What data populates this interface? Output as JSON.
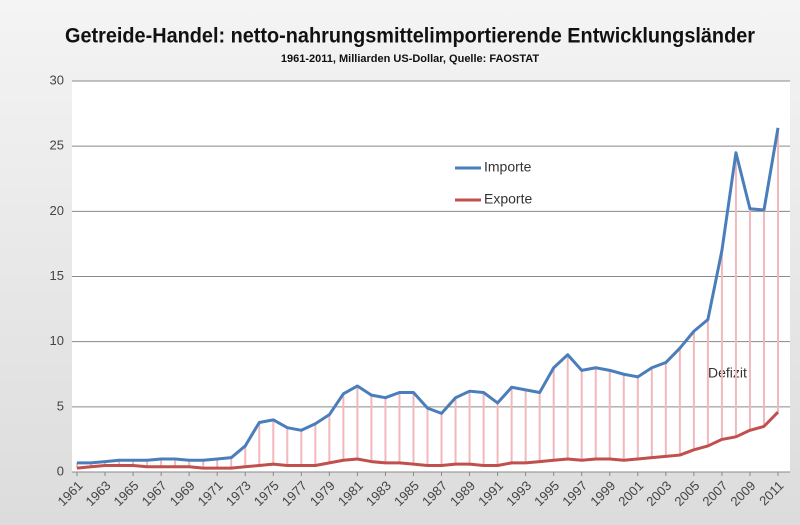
{
  "chart_data": {
    "type": "line",
    "title": "Getreide-Handel: netto-nahrungsmittelimportierende Entwicklungsländer",
    "subtitle": "1961-2011, Milliarden US-Dollar, Quelle: FAOSTAT",
    "annotation": "Defizit",
    "x": [
      1961,
      1962,
      1963,
      1964,
      1965,
      1966,
      1967,
      1968,
      1969,
      1970,
      1971,
      1972,
      1973,
      1974,
      1975,
      1976,
      1977,
      1978,
      1979,
      1980,
      1981,
      1982,
      1983,
      1984,
      1985,
      1986,
      1987,
      1988,
      1989,
      1990,
      1991,
      1992,
      1993,
      1994,
      1995,
      1996,
      1997,
      1998,
      1999,
      2000,
      2001,
      2002,
      2003,
      2004,
      2005,
      2006,
      2007,
      2008,
      2009,
      2010,
      2011
    ],
    "series": [
      {
        "name": "Importe",
        "color": "#4a7ebb",
        "values": [
          0.7,
          0.7,
          0.8,
          0.9,
          0.9,
          0.9,
          1.0,
          1.0,
          0.9,
          0.9,
          1.0,
          1.1,
          2.0,
          3.8,
          4.0,
          3.4,
          3.2,
          3.7,
          4.4,
          6.0,
          6.6,
          5.9,
          5.7,
          6.1,
          6.1,
          4.9,
          4.5,
          5.7,
          6.2,
          6.1,
          5.3,
          6.5,
          6.3,
          6.1,
          8.0,
          9.0,
          7.8,
          8.0,
          7.8,
          7.5,
          7.3,
          8.0,
          8.4,
          9.5,
          10.8,
          11.7,
          17.0,
          24.5,
          20.2,
          20.1,
          26.4
        ]
      },
      {
        "name": "Exporte",
        "color": "#c0504d",
        "values": [
          0.3,
          0.4,
          0.5,
          0.5,
          0.5,
          0.4,
          0.4,
          0.4,
          0.4,
          0.3,
          0.3,
          0.3,
          0.4,
          0.5,
          0.6,
          0.5,
          0.5,
          0.5,
          0.7,
          0.9,
          1.0,
          0.8,
          0.7,
          0.7,
          0.6,
          0.5,
          0.5,
          0.6,
          0.6,
          0.5,
          0.5,
          0.7,
          0.7,
          0.8,
          0.9,
          1.0,
          0.9,
          1.0,
          1.0,
          0.9,
          1.0,
          1.1,
          1.2,
          1.3,
          1.7,
          2.0,
          2.5,
          2.7,
          3.2,
          3.5,
          4.6
        ]
      }
    ],
    "xlim": [
      1961,
      2011
    ],
    "xticks": [
      1961,
      1963,
      1965,
      1967,
      1969,
      1971,
      1973,
      1975,
      1977,
      1979,
      1981,
      1983,
      1985,
      1987,
      1989,
      1991,
      1993,
      1995,
      1997,
      1999,
      2001,
      2003,
      2005,
      2007,
      2009,
      2011
    ],
    "ylim": [
      0,
      30
    ],
    "yticks": [
      0,
      5,
      10,
      15,
      20,
      25,
      30
    ],
    "grid": true
  }
}
